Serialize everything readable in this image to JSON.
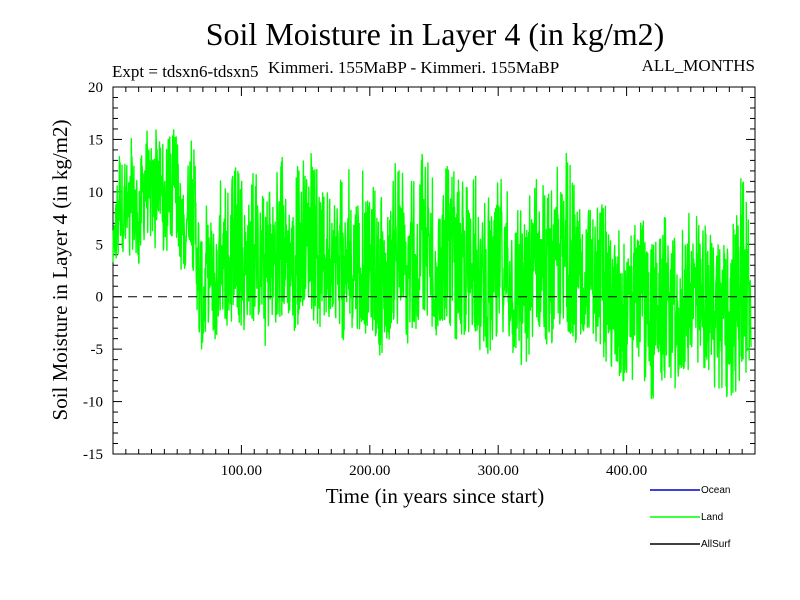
{
  "chart_data": {
    "type": "line",
    "title": "Soil Moisture in Layer 4 (in kg/m2)",
    "subtitle_left": "Expt = tdsxn6-tdsxn5",
    "subtitle_center": "Kimmeri. 155MaBP - Kimmeri. 155MaBP",
    "subtitle_right": "ALL_MONTHS",
    "xlabel": "Time (in years since start)",
    "ylabel": "Soil Moisture in Layer 4 (in kg/m2)",
    "xlim": [
      0,
      500
    ],
    "ylim": [
      -15,
      20
    ],
    "x_ticks": [
      100,
      200,
      300,
      400
    ],
    "x_tick_labels": [
      "100.00",
      "200.00",
      "300.00",
      "400.00"
    ],
    "y_ticks": [
      -15,
      -10,
      -5,
      0,
      5,
      10,
      15,
      20
    ],
    "y_tick_labels": [
      "-15",
      "-10",
      "-5",
      "0",
      "5",
      "10",
      "15",
      "20"
    ],
    "zero_line": 0,
    "series": [
      {
        "name": "Land",
        "color": "#00ff00",
        "x": [
          0,
          5,
          10,
          15,
          20,
          25,
          30,
          35,
          40,
          45,
          50,
          55,
          60,
          65,
          70,
          75,
          80,
          85,
          90,
          95,
          100,
          110,
          120,
          130,
          140,
          150,
          160,
          170,
          180,
          190,
          200,
          210,
          220,
          230,
          240,
          250,
          260,
          270,
          280,
          290,
          300,
          310,
          320,
          330,
          340,
          350,
          360,
          370,
          380,
          390,
          400,
          410,
          420,
          430,
          440,
          450,
          460,
          470,
          480,
          490,
          497
        ],
        "values": [
          4,
          10,
          7,
          9,
          8,
          11,
          9,
          12,
          8,
          13,
          9,
          6,
          10,
          5,
          -1,
          3,
          1,
          4,
          2,
          5,
          3,
          4,
          2,
          5,
          3,
          6,
          4,
          5,
          2,
          4,
          3,
          1,
          4,
          2,
          5,
          3,
          4,
          2,
          3,
          1,
          3,
          2,
          0,
          3,
          1,
          4,
          2,
          3,
          1,
          0,
          -2,
          1,
          -1,
          0,
          -3,
          1,
          -1,
          0,
          -2,
          1,
          -2
        ],
        "envelope_low": [
          2,
          4,
          3,
          4,
          3,
          5,
          4,
          5,
          3,
          6,
          3,
          1,
          4,
          -3,
          -6,
          -3,
          -5,
          -2,
          -4,
          -2,
          -4,
          -3,
          -5,
          -2,
          -4,
          -1,
          -3,
          -2,
          -5,
          -3,
          -4,
          -6,
          -3,
          -5,
          -2,
          -4,
          -3,
          -5,
          -4,
          -6,
          -4,
          -5,
          -8,
          -4,
          -6,
          -3,
          -5,
          -4,
          -6,
          -7,
          -9,
          -7,
          -10,
          -8,
          -9,
          -7,
          -8,
          -9,
          -10,
          -8,
          -7
        ],
        "envelope_high": [
          7,
          16,
          13,
          16,
          14,
          17,
          15,
          17,
          14,
          17,
          15,
          11,
          16,
          13,
          8,
          10,
          9,
          12,
          10,
          13,
          11,
          12,
          10,
          14,
          11,
          15,
          12,
          13,
          11,
          14,
          12,
          10,
          13,
          11,
          14,
          12,
          13,
          11,
          12,
          10,
          12,
          11,
          8,
          12,
          10,
          15,
          11,
          12,
          9,
          8,
          6,
          8,
          7,
          8,
          5,
          9,
          7,
          6,
          5,
          12,
          6
        ]
      },
      {
        "name": "Ocean",
        "color": "#0000cc",
        "values": []
      },
      {
        "name": "AllSurf",
        "color": "#000000",
        "values": []
      }
    ],
    "legend": [
      {
        "label": "Ocean",
        "color": "#0000cc"
      },
      {
        "label": "Land",
        "color": "#00ff00"
      },
      {
        "label": "AllSurf",
        "color": "#000000"
      }
    ],
    "legend_position": "bottom-right"
  }
}
